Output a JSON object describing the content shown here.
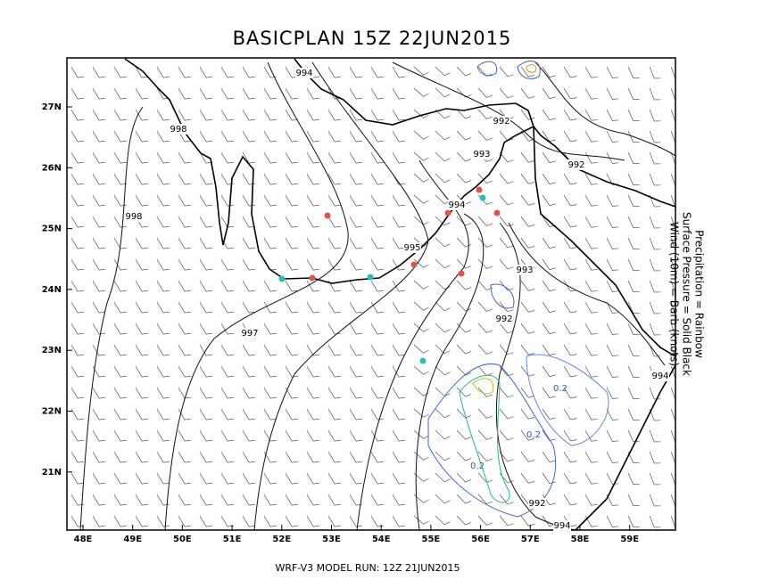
{
  "title": "BASICPLAN 15Z 22JUN2015",
  "footer": "WRF-V3 MODEL RUN: 12Z 21JUN2015",
  "legend": [
    "Precipitation = Rainbow",
    "Surface Pressure = Solid Black",
    "Wind (10m) = Barb (knots)"
  ],
  "lon_labels": [
    "48E",
    "49E",
    "50E",
    "51E",
    "52E",
    "53E",
    "54E",
    "55E",
    "56E",
    "57E",
    "58E",
    "59E"
  ],
  "lat_labels": [
    "27N",
    "26N",
    "25N",
    "24N",
    "23N",
    "22N",
    "21N"
  ],
  "contour_labels": [
    "994",
    "998",
    "998",
    "992",
    "993",
    "992",
    "994",
    "995",
    "993",
    "992",
    "997",
    "994",
    "992",
    "994"
  ],
  "precip_labels": [
    "0.2",
    "0.2",
    "0.2"
  ]
}
